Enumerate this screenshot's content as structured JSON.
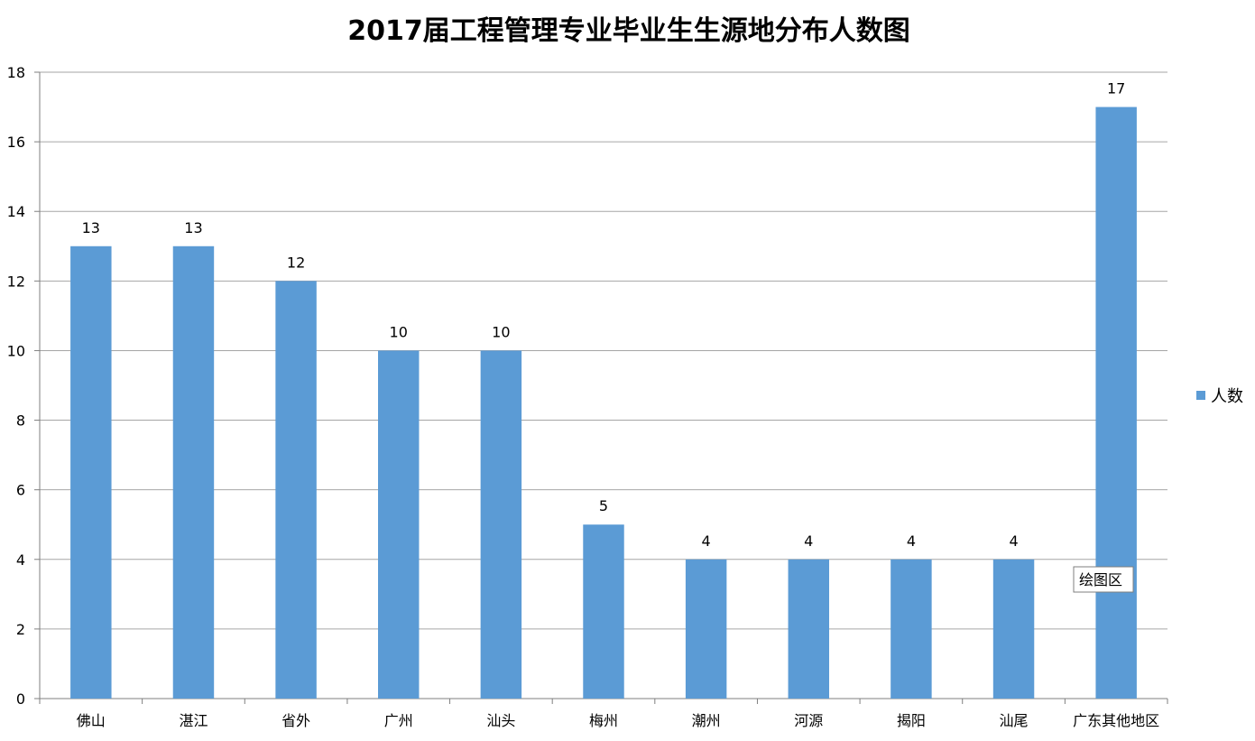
{
  "chart_data": {
    "type": "bar",
    "title": "2017届工程管理专业毕业生生源地分布人数图",
    "categories": [
      "佛山",
      "湛江",
      "省外",
      "广州",
      "汕头",
      "梅州",
      "潮州",
      "河源",
      "揭阳",
      "汕尾",
      "广东其他地区"
    ],
    "series": [
      {
        "name": "人数",
        "values": [
          13,
          13,
          12,
          10,
          10,
          5,
          4,
          4,
          4,
          4,
          17
        ],
        "color": "#5b9bd5"
      }
    ],
    "data_labels": [
      "13",
      "13",
      "12",
      "10",
      "10",
      "5",
      "4",
      "4",
      "4",
      "4",
      "17"
    ],
    "yticks": [
      "0",
      "2",
      "4",
      "6",
      "8",
      "10",
      "12",
      "14",
      "16",
      "18"
    ],
    "ylim": [
      0,
      18
    ],
    "xlabel": "",
    "ylabel": "",
    "grid": true,
    "legend_position": "right"
  },
  "tooltip": {
    "text": "绘图区"
  }
}
